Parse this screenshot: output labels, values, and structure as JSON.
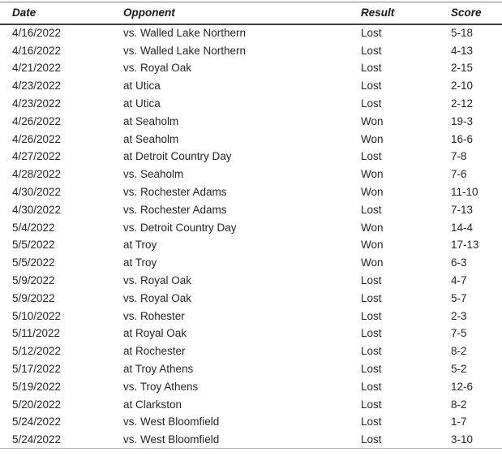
{
  "table": {
    "columns": [
      {
        "key": "date",
        "label": "Date"
      },
      {
        "key": "opponent",
        "label": "Opponent"
      },
      {
        "key": "result",
        "label": "Result"
      },
      {
        "key": "score",
        "label": "Score"
      }
    ],
    "rows": [
      [
        "4/16/2022",
        "vs. Walled Lake Northern",
        "Lost",
        "5-18"
      ],
      [
        "4/16/2022",
        "vs. Walled Lake Northern",
        "Lost",
        "4-13"
      ],
      [
        "4/21/2022",
        "vs. Royal Oak",
        "Lost",
        "2-15"
      ],
      [
        "4/23/2022",
        "at Utica",
        "Lost",
        "2-10"
      ],
      [
        "4/23/2022",
        "at Utica",
        "Lost",
        "2-12"
      ],
      [
        "4/26/2022",
        "at Seaholm",
        "Won",
        "19-3"
      ],
      [
        "4/26/2022",
        "at Seaholm",
        "Won",
        "16-6"
      ],
      [
        "4/27/2022",
        "at Detroit Country Day",
        "Lost",
        "7-8"
      ],
      [
        "4/28/2022",
        "vs. Seaholm",
        "Won",
        "7-6"
      ],
      [
        "4/30/2022",
        "vs. Rochester Adams",
        "Won",
        "11-10"
      ],
      [
        "4/30/2022",
        "vs. Rochester Adams",
        "Lost",
        "7-13"
      ],
      [
        "5/4/2022",
        "vs. Detroit Country Day",
        "Won",
        "14-4"
      ],
      [
        "5/5/2022",
        "at Troy",
        "Won",
        "17-13"
      ],
      [
        "5/5/2022",
        "at Troy",
        "Won",
        "6-3"
      ],
      [
        "5/9/2022",
        "vs. Royal Oak",
        "Lost",
        "4-7"
      ],
      [
        "5/9/2022",
        "vs. Royal Oak",
        "Lost",
        "5-7"
      ],
      [
        "5/10/2022",
        "vs. Rohester",
        "Lost",
        "2-3"
      ],
      [
        "5/11/2022",
        "at Royal Oak",
        "Lost",
        "7-5"
      ],
      [
        "5/12/2022",
        "at Rochester",
        "Lost",
        "8-2"
      ],
      [
        "5/17/2022",
        "at Troy Athens",
        "Lost",
        "5-2"
      ],
      [
        "5/19/2022",
        "vs. Troy Athens",
        "Lost",
        "12-6"
      ],
      [
        "5/20/2022",
        "at Clarkston",
        "Lost",
        "8-2"
      ],
      [
        "5/24/2022",
        "vs. West Bloomfield",
        "Lost",
        "1-7"
      ],
      [
        "5/24/2022",
        "vs. West Bloomfield",
        "Lost",
        "3-10"
      ]
    ]
  },
  "colors": {
    "background": "#ffffff",
    "text": "#262626",
    "header_text": "#1a1a1a",
    "top_rule": "#7f7f7f",
    "header_rule": "#404040",
    "bottom_rule": "#b3b3b3"
  }
}
